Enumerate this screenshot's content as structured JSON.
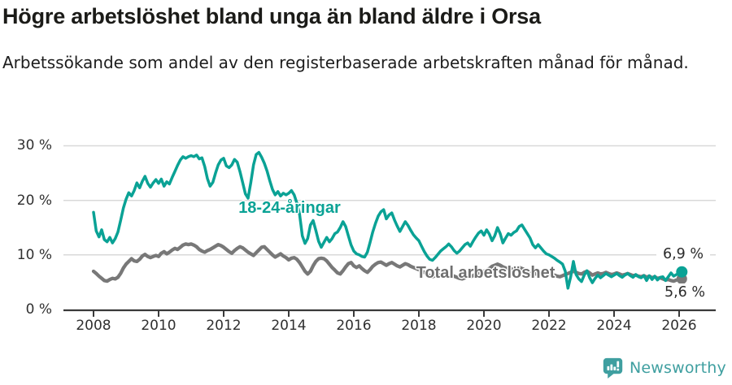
{
  "header": {
    "title": "Högre arbetslöshet bland unga än bland äldre i Orsa",
    "subtitle": "Arbetssökande som andel av den registerbaserade arbetskraften månad för månad."
  },
  "chart_data": {
    "type": "line",
    "unit": "%",
    "frequency": "monthly",
    "x_start": "2008-01",
    "x_end": "2026-02",
    "ylim": [
      0,
      31
    ],
    "grid": "horizontal-only",
    "legend_position": "inline-labels-on-lines",
    "y_ticks": [
      {
        "value": 0,
        "label": "0 %"
      },
      {
        "value": 10,
        "label": "10 %"
      },
      {
        "value": 20,
        "label": "20 %"
      },
      {
        "value": 30,
        "label": "30 %"
      }
    ],
    "x_ticks": [
      {
        "value": 2008,
        "label": "2008"
      },
      {
        "value": 2010,
        "label": "2010"
      },
      {
        "value": 2012,
        "label": "2012"
      },
      {
        "value": 2014,
        "label": "2014"
      },
      {
        "value": 2016,
        "label": "2016"
      },
      {
        "value": 2018,
        "label": "2018"
      },
      {
        "value": 2020,
        "label": "2020"
      },
      {
        "value": 2022,
        "label": "2022"
      },
      {
        "value": 2024,
        "label": "2024"
      },
      {
        "value": 2026,
        "label": "2026"
      }
    ],
    "series": [
      {
        "name": "18-24-åringar",
        "color": "#0aa295",
        "end_label": "6,9 %",
        "end_value": 6.9,
        "values": [
          17.8,
          14.4,
          13.3,
          14.6,
          12.8,
          12.4,
          13.2,
          12.2,
          13.0,
          14.2,
          16.3,
          18.6,
          20.2,
          21.4,
          20.8,
          21.8,
          23.2,
          22.3,
          23.5,
          24.4,
          23.1,
          22.4,
          23.2,
          23.8,
          23.1,
          23.9,
          22.6,
          23.4,
          23.0,
          24.2,
          25.3,
          26.4,
          27.4,
          28.0,
          27.7,
          28.0,
          28.2,
          28.0,
          28.3,
          27.6,
          27.8,
          26.2,
          24.0,
          22.6,
          23.3,
          25.0,
          26.5,
          27.4,
          27.7,
          26.3,
          26.0,
          26.5,
          27.5,
          27.0,
          25.3,
          23.3,
          21.2,
          20.4,
          23.2,
          26.5,
          28.4,
          28.8,
          27.9,
          26.8,
          25.4,
          23.6,
          22.0,
          21.0,
          21.6,
          20.8,
          21.3,
          21.0,
          21.3,
          21.8,
          21.0,
          19.5,
          17.5,
          13.5,
          12.1,
          13.0,
          15.5,
          16.3,
          14.5,
          12.5,
          11.4,
          12.3,
          13.2,
          12.4,
          13.0,
          13.9,
          14.2,
          15.0,
          16.1,
          15.2,
          13.5,
          11.8,
          10.7,
          10.2,
          10.0,
          9.7,
          9.6,
          10.5,
          12.3,
          14.2,
          15.8,
          17.1,
          17.9,
          18.3,
          16.6,
          17.3,
          17.7,
          16.4,
          15.3,
          14.3,
          15.2,
          16.1,
          15.4,
          14.5,
          13.7,
          13.1,
          12.6,
          11.6,
          10.6,
          9.8,
          9.2,
          9.0,
          9.5,
          10.1,
          10.7,
          11.1,
          11.5,
          12.0,
          11.5,
          10.8,
          10.3,
          10.7,
          11.3,
          11.9,
          12.2,
          11.6,
          12.5,
          13.3,
          14.0,
          14.4,
          13.6,
          14.6,
          13.8,
          12.6,
          13.5,
          15.0,
          13.9,
          12.2,
          13.1,
          13.9,
          13.6,
          14.1,
          14.4,
          15.2,
          15.5,
          14.7,
          13.9,
          13.1,
          11.9,
          11.3,
          11.9,
          11.3,
          10.7,
          10.2,
          10.0,
          9.7,
          9.4,
          9.0,
          8.7,
          8.3,
          7.0,
          3.9,
          6.0,
          8.8,
          6.4,
          5.6,
          5.1,
          6.3,
          7.1,
          5.8,
          4.9,
          5.7,
          6.3,
          5.8,
          6.2,
          6.6,
          6.3,
          6.0,
          6.3,
          6.6,
          6.2,
          5.9,
          6.3,
          6.6,
          6.2,
          5.9,
          6.4,
          6.0,
          5.8,
          6.2,
          5.3,
          6.2,
          5.5,
          6.1,
          5.4,
          5.9,
          6.0,
          5.3,
          6.0,
          6.7,
          6.1,
          6.4,
          6.6,
          6.9
        ]
      },
      {
        "name": "Total arbetslöshet",
        "color": "#787878",
        "end_label": "5,6 %",
        "end_value": 5.6,
        "values": [
          7.0,
          6.6,
          6.1,
          5.7,
          5.3,
          5.2,
          5.5,
          5.7,
          5.6,
          5.9,
          6.6,
          7.6,
          8.3,
          8.8,
          9.3,
          8.9,
          8.8,
          9.2,
          9.8,
          10.1,
          9.7,
          9.5,
          9.7,
          9.9,
          9.7,
          10.3,
          10.6,
          10.2,
          10.5,
          10.9,
          11.2,
          11.0,
          11.4,
          11.8,
          12.0,
          11.9,
          12.0,
          11.8,
          11.5,
          11.0,
          10.7,
          10.5,
          10.8,
          11.0,
          11.3,
          11.6,
          11.9,
          11.7,
          11.4,
          11.0,
          10.6,
          10.3,
          10.8,
          11.2,
          11.5,
          11.3,
          10.9,
          10.5,
          10.2,
          9.9,
          10.4,
          10.9,
          11.4,
          11.5,
          11.0,
          10.5,
          10.0,
          9.6,
          9.9,
          10.2,
          9.8,
          9.5,
          9.1,
          9.4,
          9.5,
          9.2,
          8.6,
          7.8,
          7.0,
          6.5,
          7.0,
          8.0,
          8.8,
          9.3,
          9.4,
          9.3,
          8.9,
          8.3,
          7.7,
          7.2,
          6.7,
          6.5,
          7.1,
          7.8,
          8.4,
          8.6,
          8.0,
          7.7,
          8.0,
          7.5,
          7.1,
          6.8,
          7.3,
          7.9,
          8.3,
          8.6,
          8.7,
          8.4,
          8.1,
          8.4,
          8.6,
          8.3,
          8.0,
          7.8,
          8.1,
          8.4,
          8.2,
          7.9,
          7.7,
          7.5,
          7.3,
          7.0,
          6.8,
          6.5,
          6.2,
          6.0,
          6.2,
          6.4,
          6.3,
          6.1,
          6.3,
          6.5,
          6.3,
          6.1,
          5.9,
          5.7,
          5.6,
          5.8,
          6.1,
          6.0,
          6.2,
          6.5,
          6.7,
          6.9,
          7.0,
          7.2,
          7.5,
          7.9,
          8.1,
          8.3,
          8.1,
          7.8,
          7.6,
          7.4,
          7.3,
          7.5,
          7.6,
          7.7,
          7.5,
          7.3,
          7.1,
          6.9,
          6.7,
          6.5,
          6.6,
          6.4,
          6.3,
          6.2,
          6.4,
          6.5,
          6.3,
          6.1,
          6.0,
          6.2,
          6.4,
          6.6,
          6.8,
          7.0,
          6.8,
          6.6,
          6.5,
          6.8,
          7.0,
          6.7,
          6.3,
          6.5,
          6.7,
          6.5,
          6.6,
          6.8,
          6.6,
          6.4,
          6.5,
          6.7,
          6.5,
          6.3,
          6.4,
          6.6,
          6.4,
          6.2,
          6.3,
          6.1,
          6.0,
          6.2,
          5.9,
          6.1,
          5.8,
          6.0,
          5.7,
          5.8,
          5.6,
          5.4,
          5.5,
          5.3,
          5.2,
          5.4,
          5.5,
          5.6
        ]
      }
    ]
  },
  "footer": {
    "brand_name": "Newsworthy",
    "brand_color": "#3f9fa0"
  }
}
